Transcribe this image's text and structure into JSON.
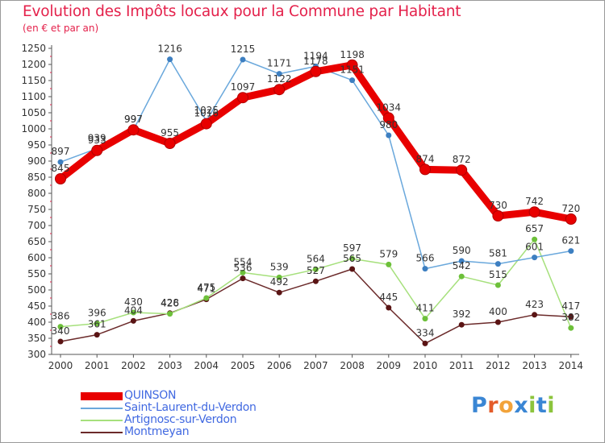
{
  "header": {
    "title": "Evolution des Impôts locaux pour la Commune par Habitant",
    "subtitle": "(en € et par an)"
  },
  "logo": {
    "text": "Proxiti",
    "letters": [
      "P",
      "r",
      "o",
      "x",
      "i",
      "t",
      "i"
    ],
    "colors": [
      "#3a86d4",
      "#e45c2a",
      "#f2a33a",
      "#3a86d4",
      "#8cc43c",
      "#3a86d4",
      "#8cc43c"
    ]
  },
  "chart_data": {
    "type": "line",
    "title": "Evolution des Impôts locaux pour la Commune par Habitant",
    "subtitle": "(en € et par an)",
    "xlabel": "",
    "ylabel": "",
    "ylim": [
      300,
      1250
    ],
    "ystep": 50,
    "grid": false,
    "legend_position": "bottom-left",
    "categories": [
      "2000",
      "2001",
      "2002",
      "2003",
      "2004",
      "2005",
      "2006",
      "2007",
      "2008",
      "2009",
      "2010",
      "2011",
      "2012",
      "2013",
      "2014"
    ],
    "series": [
      {
        "name": "QUINSON",
        "color": "#e80000",
        "marker": "#e80000",
        "values": [
          845,
          933,
          997,
          955,
          1016,
          1097,
          1122,
          1178,
          1198,
          1034,
          874,
          872,
          730,
          742,
          720
        ],
        "labels": [
          "845",
          "933",
          "997",
          "955",
          "1016",
          "1097",
          "1122",
          "1178",
          "1198",
          "1034",
          "874",
          "872",
          "730",
          "742",
          "720"
        ]
      },
      {
        "name": "Saint-Laurent-du-Verdon",
        "color": "#6aa8dc",
        "marker": "#3d7fc1",
        "values": [
          897,
          939,
          997,
          1216,
          1025,
          1215,
          1171,
          1194,
          1151,
          980,
          566,
          590,
          581,
          601,
          621
        ],
        "labels": [
          "897",
          "939",
          "997",
          "1216",
          "1025",
          "1215",
          "1171",
          "1194",
          "1151",
          "980",
          "566",
          "590",
          "581",
          "601",
          "621"
        ]
      },
      {
        "name": "Artignosc-sur-Verdon",
        "color": "#a6e07c",
        "marker": "#6dc03a",
        "values": [
          386,
          396,
          430,
          426,
          475,
          554,
          539,
          564,
          597,
          579,
          411,
          542,
          515,
          657,
          382
        ],
        "labels": [
          "386",
          "396",
          "430",
          "426",
          "475",
          "554",
          "539",
          "564",
          "597",
          "579",
          "411",
          "542",
          "515",
          "657",
          "382"
        ]
      },
      {
        "name": "Montmeyan",
        "color": "#6b2a2a",
        "marker": "#5a1414",
        "values": [
          340,
          361,
          404,
          428,
          471,
          536,
          492,
          527,
          565,
          445,
          334,
          392,
          400,
          423,
          417
        ],
        "labels": [
          "340",
          "361",
          "404",
          "428",
          "471",
          "536",
          "492",
          "527",
          "565",
          "445",
          "334",
          "392",
          "400",
          "423",
          "417"
        ]
      }
    ]
  }
}
